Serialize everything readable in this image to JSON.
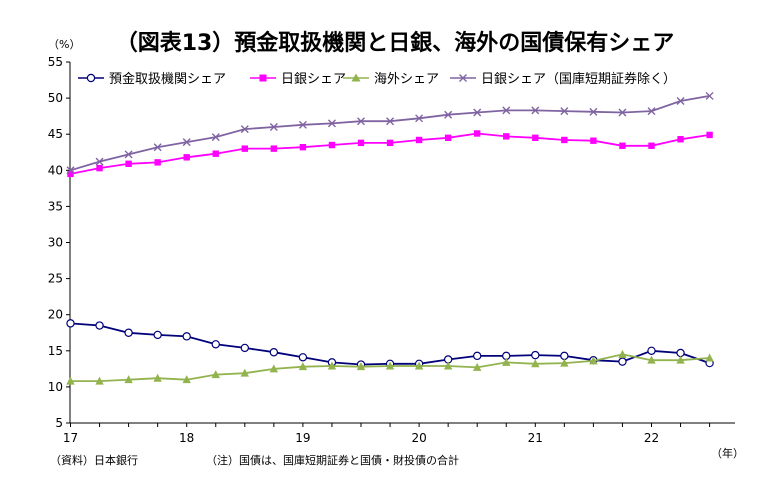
{
  "chart_data": {
    "type": "line",
    "title": "（図表13）預金取扱機関と日銀、海外の国債保有シェア",
    "y_unit": "（%）",
    "x_unit": "（年）",
    "ylim": [
      5,
      55
    ],
    "y_ticks": [
      "55",
      "50",
      "45",
      "40",
      "35",
      "30",
      "25",
      "20",
      "15",
      "10",
      "5"
    ],
    "x_tick_labels": [
      "17",
      "18",
      "19",
      "20",
      "21",
      "22"
    ],
    "x": [
      "2017Q1",
      "2017Q2",
      "2017Q3",
      "2017Q4",
      "2018Q1",
      "2018Q2",
      "2018Q3",
      "2018Q4",
      "2019Q1",
      "2019Q2",
      "2019Q3",
      "2019Q4",
      "2020Q1",
      "2020Q2",
      "2020Q3",
      "2020Q4",
      "2021Q1",
      "2021Q2",
      "2021Q3",
      "2021Q4",
      "2022Q1",
      "2022Q2",
      "2022Q3"
    ],
    "grid": false,
    "legend_position": "top",
    "series": [
      {
        "name": "預金取扱機関シェア",
        "color": "#00007A",
        "marker": "circle",
        "values": [
          18.8,
          18.5,
          17.5,
          17.2,
          17.0,
          15.9,
          15.4,
          14.8,
          14.1,
          13.4,
          13.1,
          13.2,
          13.2,
          13.8,
          14.3,
          14.3,
          14.4,
          14.3,
          13.7,
          13.5,
          15.0,
          14.7,
          13.3
        ]
      },
      {
        "name": "日銀シェア",
        "color": "#FF00FF",
        "marker": "square",
        "values": [
          39.5,
          40.3,
          40.9,
          41.1,
          41.8,
          42.3,
          43.0,
          43.0,
          43.2,
          43.5,
          43.8,
          43.8,
          44.2,
          44.5,
          45.1,
          44.7,
          44.5,
          44.2,
          44.1,
          43.4,
          43.4,
          44.3,
          44.9
        ]
      },
      {
        "name": "海外シェア",
        "color": "#92B34D",
        "marker": "triangle",
        "values": [
          10.8,
          10.8,
          11.0,
          11.2,
          11.0,
          11.7,
          11.9,
          12.5,
          12.8,
          12.9,
          12.8,
          12.9,
          12.9,
          12.9,
          12.7,
          13.4,
          13.2,
          13.3,
          13.6,
          14.5,
          13.7,
          13.7,
          14.0
        ]
      },
      {
        "name": "日銀シェア（国庫短期証券除く）",
        "color": "#8064A2",
        "marker": "x",
        "values": [
          40.0,
          41.2,
          42.2,
          43.2,
          43.9,
          44.6,
          45.7,
          46.0,
          46.3,
          46.5,
          46.8,
          46.8,
          47.2,
          47.7,
          48.0,
          48.3,
          48.3,
          48.2,
          48.1,
          48.0,
          48.2,
          49.6,
          50.3
        ]
      }
    ]
  },
  "footer": {
    "source": "（資料）日本銀行",
    "note": "（注）国債は、国庫短期証券と国債・財投債の合計"
  }
}
